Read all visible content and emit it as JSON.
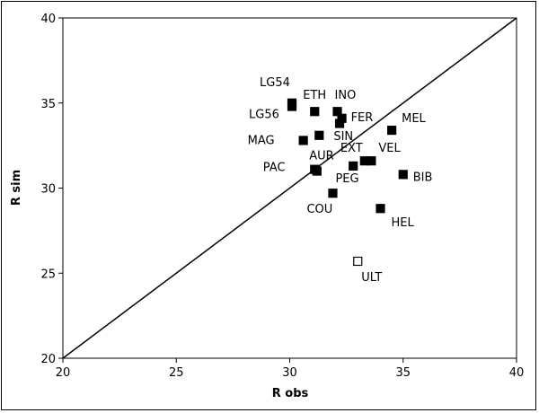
{
  "chart_data": {
    "type": "scatter",
    "xlabel": "R obs",
    "ylabel": "R sim",
    "xlim": [
      20,
      40
    ],
    "ylim": [
      20,
      40
    ],
    "x_ticks": [
      20,
      25,
      30,
      35,
      40
    ],
    "y_ticks": [
      20,
      25,
      30,
      35,
      40
    ],
    "grid": false,
    "legend": "none",
    "reference_line": {
      "from": [
        20,
        20
      ],
      "to": [
        40,
        40
      ]
    },
    "points": [
      {
        "label": "LG54",
        "x": 30.1,
        "y": 35.0,
        "marker": "filled"
      },
      {
        "label": "LG56",
        "x": 30.1,
        "y": 34.8,
        "marker": "filled"
      },
      {
        "label": "ETH",
        "x": 31.1,
        "y": 34.5,
        "marker": "filled"
      },
      {
        "label": "INO",
        "x": 32.1,
        "y": 34.5,
        "marker": "filled"
      },
      {
        "label": "FER",
        "x": 32.3,
        "y": 34.1,
        "marker": "filled"
      },
      {
        "label": "",
        "x": 32.2,
        "y": 33.8,
        "marker": "filled"
      },
      {
        "label": "SIN",
        "x": 31.3,
        "y": 33.1,
        "marker": "filled"
      },
      {
        "label": "MEL",
        "x": 34.5,
        "y": 33.4,
        "marker": "filled"
      },
      {
        "label": "MAG",
        "x": 30.6,
        "y": 32.8,
        "marker": "filled"
      },
      {
        "label": "AUR",
        "x": 31.1,
        "y": 31.1,
        "marker": "filled"
      },
      {
        "label": "EXT",
        "x": 33.3,
        "y": 31.6,
        "marker": "filled"
      },
      {
        "label": "VEL",
        "x": 33.6,
        "y": 31.6,
        "marker": "filled"
      },
      {
        "label": "",
        "x": 32.8,
        "y": 31.3,
        "marker": "filled"
      },
      {
        "label": "BIB",
        "x": 35.0,
        "y": 30.8,
        "marker": "filled"
      },
      {
        "label": "PAC",
        "x": 31.2,
        "y": 31.0,
        "marker": "filled"
      },
      {
        "label": "PEG",
        "x": 31.9,
        "y": 29.7,
        "marker": "filled"
      },
      {
        "label": "COU",
        "x": 31.9,
        "y": 29.7,
        "marker": "none"
      },
      {
        "label": "HEL",
        "x": 34.0,
        "y": 28.8,
        "marker": "filled"
      },
      {
        "label": "ULT",
        "x": 33.0,
        "y": 25.7,
        "marker": "open"
      }
    ]
  }
}
